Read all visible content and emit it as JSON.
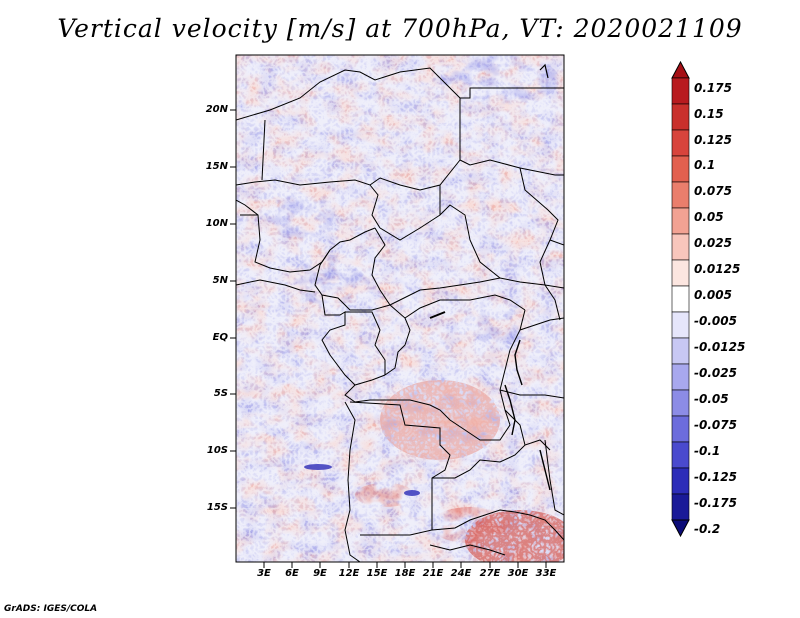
{
  "title": "Vertical velocity [m/s] at 700hPa, VT: 2020021109",
  "credit": "GrADS: IGES/COLA",
  "lat_labels": [
    "20N",
    "15N",
    "10N",
    "5N",
    "EQ",
    "5S",
    "10S",
    "15S"
  ],
  "lon_labels": [
    "3E",
    "6E",
    "9E",
    "12E",
    "15E",
    "18E",
    "21E",
    "24E",
    "27E",
    "30E",
    "33E"
  ],
  "colorbar": {
    "levels": [
      "0.175",
      "0.15",
      "0.125",
      "0.1",
      "0.075",
      "0.05",
      "0.025",
      "0.0125",
      "0.005",
      "-0.005",
      "-0.0125",
      "-0.025",
      "-0.05",
      "-0.075",
      "-0.1",
      "-0.125",
      "-0.175",
      "-0.2"
    ],
    "colors": [
      "#a50f15",
      "#b81b1f",
      "#c9302c",
      "#d8443c",
      "#e2604f",
      "#ea7e6c",
      "#f2a293",
      "#f8c6bc",
      "#fce6e0",
      "#ffffff",
      "#e6e6fb",
      "#c8c8f4",
      "#a8a8ee",
      "#8c8ce6",
      "#6c6cdc",
      "#4a4ace",
      "#2c2cb8",
      "#1a1a98",
      "#0c0c78"
    ]
  }
}
